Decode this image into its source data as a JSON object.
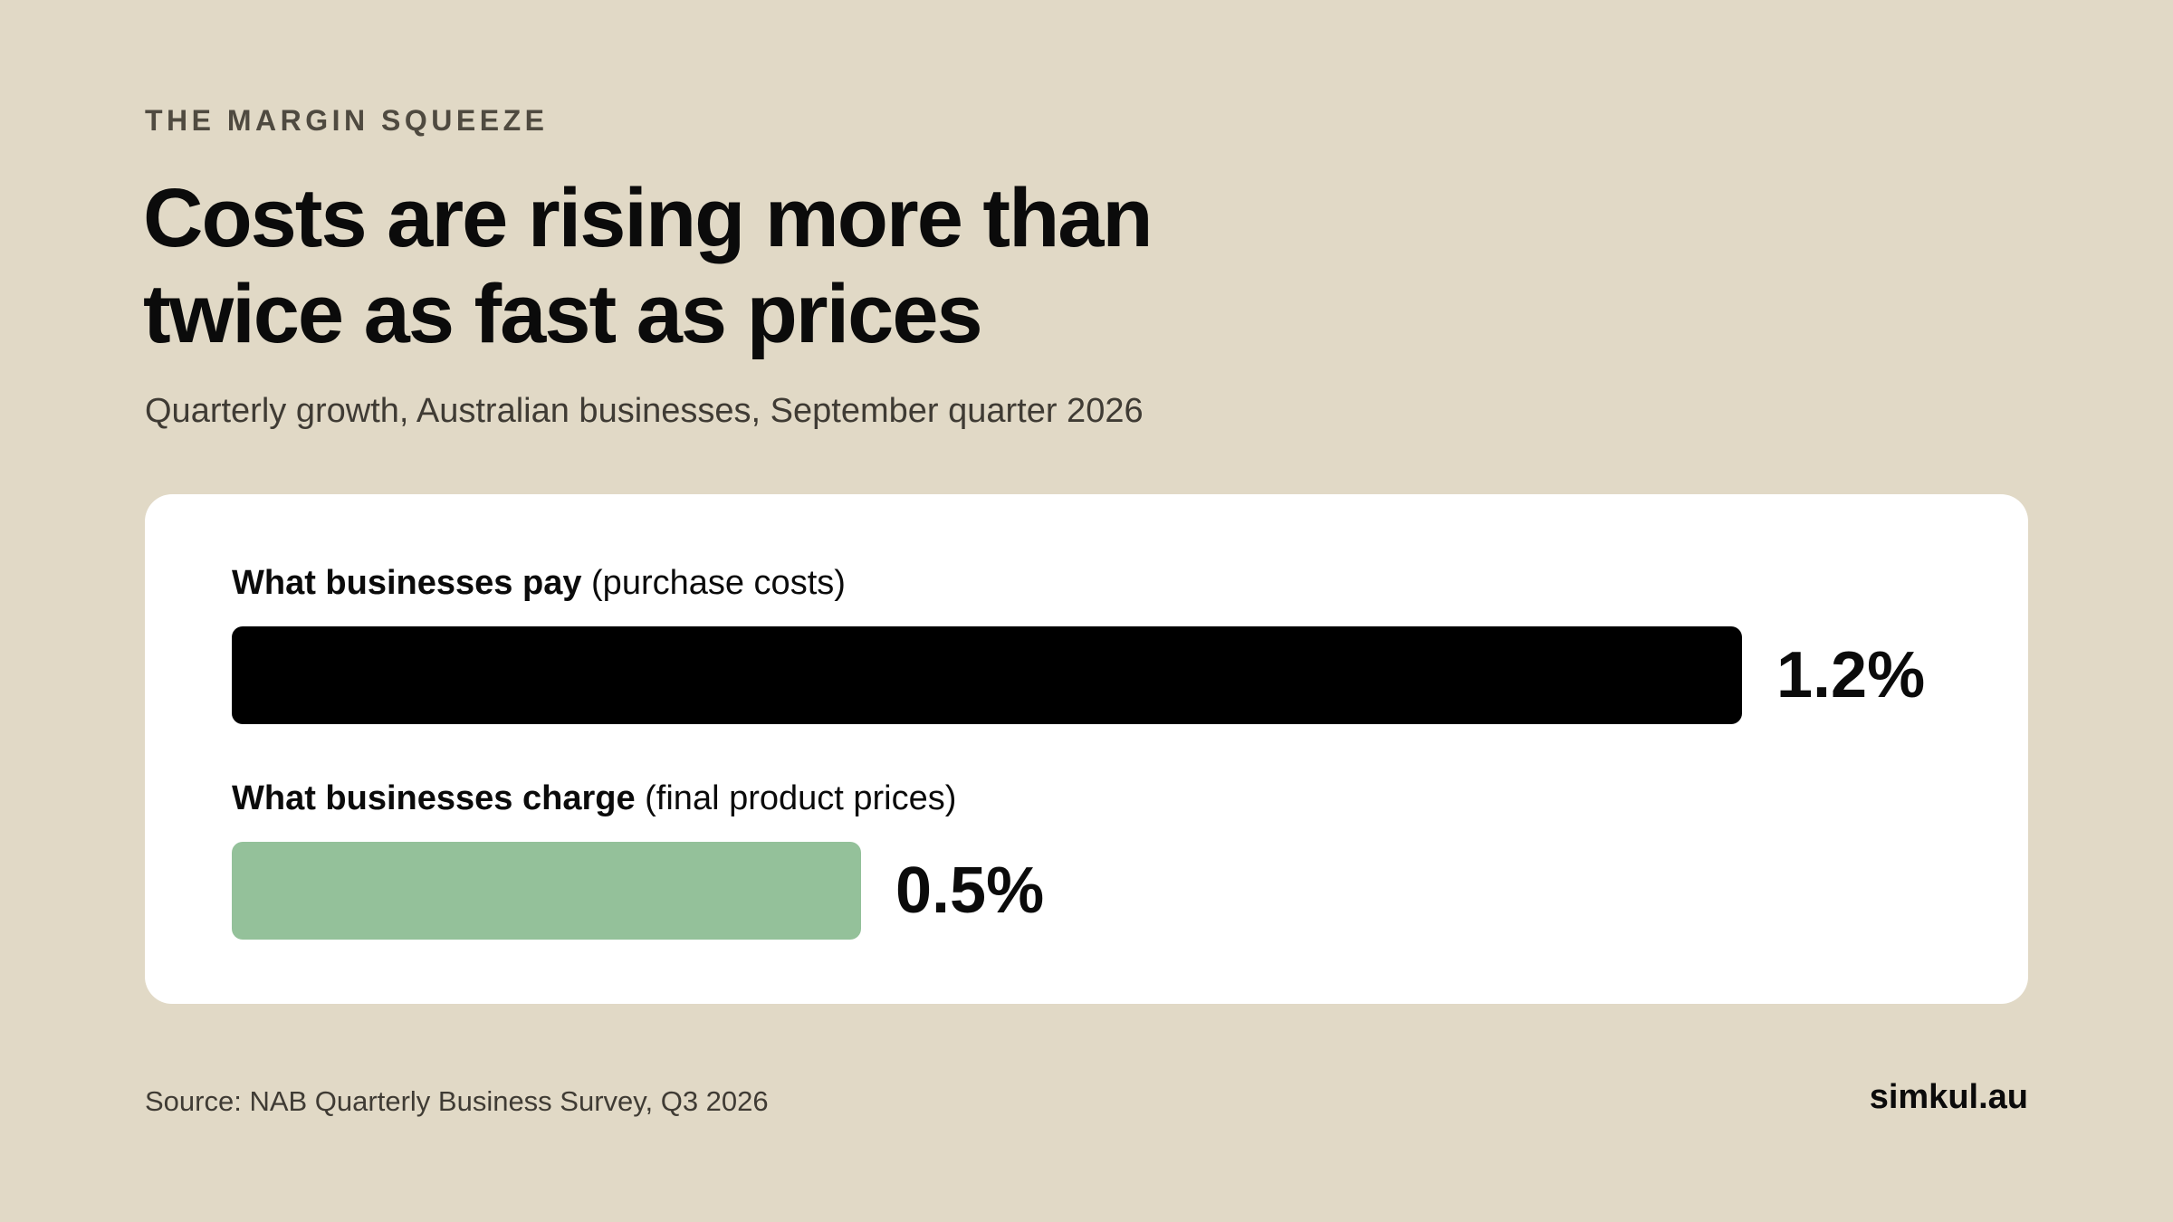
{
  "kicker": "THE MARGIN SQUEEZE",
  "title": "Costs are rising more than twice as fast as prices",
  "subtitle": "Quarterly growth, Australian businesses, September quarter 2026",
  "source": "Source: NAB Quarterly Business Survey, Q3 2026",
  "brand": "simkul.au",
  "colors": {
    "background": "#e1d9c6",
    "card": "#ffffff",
    "pay_bar": "#000000",
    "charge_bar": "#94c19a"
  },
  "chart_data": {
    "type": "bar",
    "orientation": "horizontal",
    "categories": [
      "What businesses pay (purchase costs)",
      "What businesses charge (final product prices)"
    ],
    "label_parts": [
      {
        "bold": "What businesses pay",
        "rest": " (purchase costs)"
      },
      {
        "bold": "What businesses charge",
        "rest": " (final product prices)"
      }
    ],
    "values": [
      1.2,
      0.5
    ],
    "value_labels": [
      "1.2%",
      "0.5%"
    ],
    "unit": "%",
    "xlim": [
      0,
      1.2
    ],
    "colors": [
      "#000000",
      "#94c19a"
    ],
    "title": "Costs are rising more than twice as fast as prices",
    "subtitle": "Quarterly growth, Australian businesses, September quarter 2026",
    "xlabel": "",
    "ylabel": "",
    "grid": false,
    "legend": "none"
  }
}
